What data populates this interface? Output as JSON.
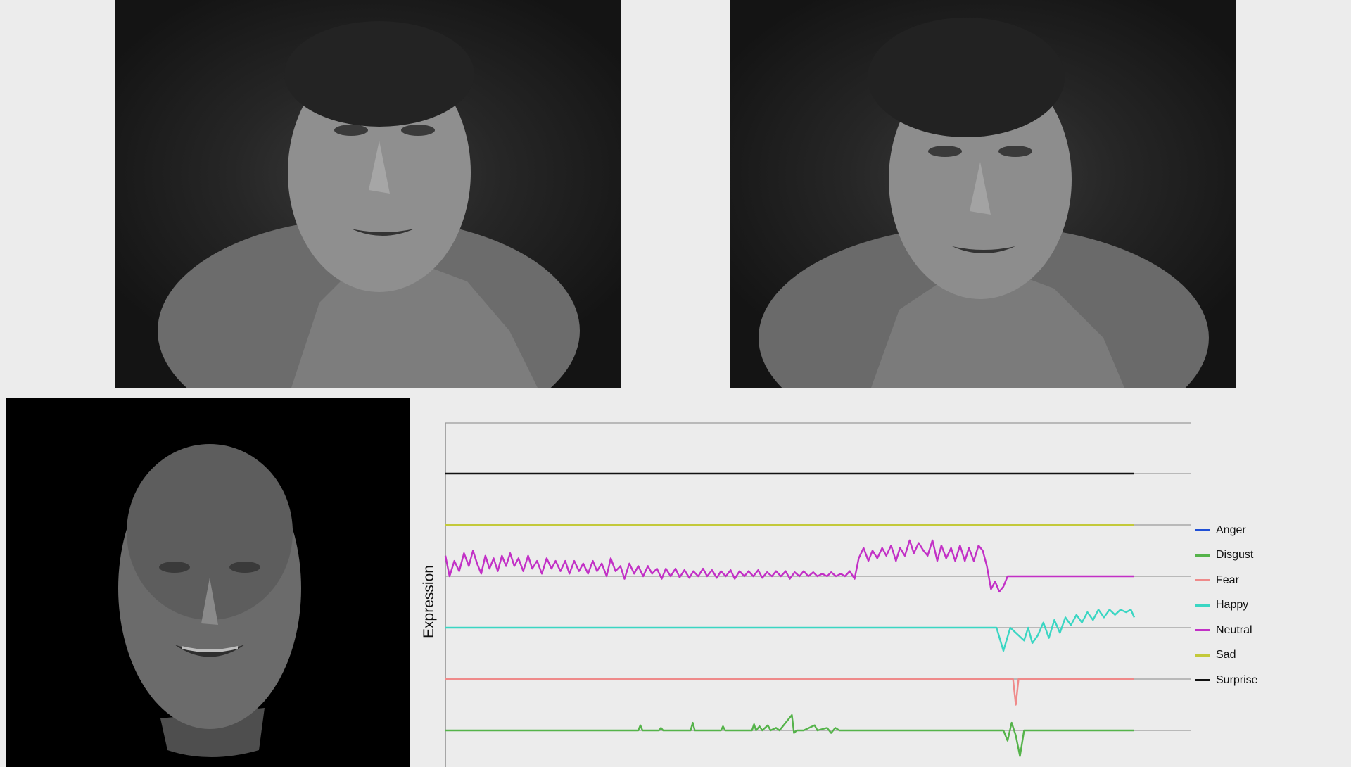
{
  "chart_data": {
    "type": "line",
    "xlabel": "",
    "ylabel": "Expression",
    "grid": "horizontal baselines per series",
    "legend_placement": "right",
    "legend": [
      {
        "name": "Anger",
        "color": "#1f4fd6"
      },
      {
        "name": "Disgust",
        "color": "#55b34a"
      },
      {
        "name": "Fear",
        "color": "#ef8a8a"
      },
      {
        "name": "Happy",
        "color": "#3ad6c3"
      },
      {
        "name": "Neutral",
        "color": "#c230c6"
      },
      {
        "name": "Sad",
        "color": "#c3c93a"
      },
      {
        "name": "Surprise",
        "color": "#111111"
      }
    ],
    "series": [
      {
        "name": "Surprise",
        "color": "#111111",
        "lane": 0,
        "points": [
          [
            0,
            0
          ],
          [
            100,
            0
          ]
        ]
      },
      {
        "name": "Sad",
        "color": "#c3c93a",
        "lane": 1,
        "points": [
          [
            0,
            0
          ],
          [
            100,
            0
          ]
        ]
      },
      {
        "name": "Neutral",
        "color": "#c230c6",
        "lane": 2,
        "points": [
          [
            0,
            0.4
          ],
          [
            0.6,
            0.0
          ],
          [
            1.3,
            0.3
          ],
          [
            2.0,
            0.1
          ],
          [
            2.7,
            0.45
          ],
          [
            3.4,
            0.2
          ],
          [
            4.0,
            0.5
          ],
          [
            4.6,
            0.25
          ],
          [
            5.2,
            0.05
          ],
          [
            5.8,
            0.4
          ],
          [
            6.4,
            0.15
          ],
          [
            7.0,
            0.35
          ],
          [
            7.6,
            0.1
          ],
          [
            8.2,
            0.4
          ],
          [
            8.8,
            0.2
          ],
          [
            9.4,
            0.45
          ],
          [
            10,
            0.2
          ],
          [
            10.6,
            0.35
          ],
          [
            11.3,
            0.1
          ],
          [
            12,
            0.4
          ],
          [
            12.6,
            0.15
          ],
          [
            13.3,
            0.3
          ],
          [
            14,
            0.05
          ],
          [
            14.7,
            0.35
          ],
          [
            15.4,
            0.15
          ],
          [
            16,
            0.3
          ],
          [
            16.7,
            0.1
          ],
          [
            17.4,
            0.3
          ],
          [
            18,
            0.05
          ],
          [
            18.7,
            0.3
          ],
          [
            19.4,
            0.1
          ],
          [
            20,
            0.25
          ],
          [
            20.7,
            0.05
          ],
          [
            21.4,
            0.3
          ],
          [
            22,
            0.1
          ],
          [
            22.7,
            0.25
          ],
          [
            23.4,
            0.0
          ],
          [
            24.0,
            0.35
          ],
          [
            24.7,
            0.1
          ],
          [
            25.4,
            0.2
          ],
          [
            26,
            -0.05
          ],
          [
            26.7,
            0.25
          ],
          [
            27.4,
            0.05
          ],
          [
            28,
            0.2
          ],
          [
            28.7,
            0.0
          ],
          [
            29.4,
            0.2
          ],
          [
            30,
            0.05
          ],
          [
            30.7,
            0.15
          ],
          [
            31.4,
            -0.05
          ],
          [
            32,
            0.15
          ],
          [
            32.7,
            0.0
          ],
          [
            33.4,
            0.15
          ],
          [
            34,
            -0.02
          ],
          [
            34.7,
            0.12
          ],
          [
            35.4,
            -0.03
          ],
          [
            36,
            0.1
          ],
          [
            36.7,
            0.0
          ],
          [
            37.4,
            0.15
          ],
          [
            38,
            0.0
          ],
          [
            38.7,
            0.12
          ],
          [
            39.4,
            -0.03
          ],
          [
            40,
            0.1
          ],
          [
            40.7,
            0.0
          ],
          [
            41.4,
            0.12
          ],
          [
            42,
            -0.05
          ],
          [
            42.7,
            0.1
          ],
          [
            43.4,
            0.0
          ],
          [
            44,
            0.1
          ],
          [
            44.7,
            0.0
          ],
          [
            45.4,
            0.12
          ],
          [
            46,
            -0.03
          ],
          [
            46.7,
            0.08
          ],
          [
            47.4,
            0.0
          ],
          [
            48,
            0.1
          ],
          [
            48.7,
            0.0
          ],
          [
            49.4,
            0.1
          ],
          [
            50,
            -0.05
          ],
          [
            50.7,
            0.08
          ],
          [
            51.4,
            0.0
          ],
          [
            52,
            0.1
          ],
          [
            52.7,
            0.0
          ],
          [
            53.4,
            0.08
          ],
          [
            54,
            0.0
          ],
          [
            54.7,
            0.05
          ],
          [
            55.4,
            0.0
          ],
          [
            56,
            0.08
          ],
          [
            56.7,
            0.0
          ],
          [
            57.4,
            0.05
          ],
          [
            58,
            0.0
          ],
          [
            58.7,
            0.1
          ],
          [
            59.4,
            -0.05
          ],
          [
            60,
            0.35
          ],
          [
            60.7,
            0.55
          ],
          [
            61.4,
            0.3
          ],
          [
            62,
            0.5
          ],
          [
            62.7,
            0.35
          ],
          [
            63.4,
            0.55
          ],
          [
            64,
            0.4
          ],
          [
            64.7,
            0.6
          ],
          [
            65.4,
            0.3
          ],
          [
            66,
            0.55
          ],
          [
            66.7,
            0.4
          ],
          [
            67.4,
            0.7
          ],
          [
            68,
            0.45
          ],
          [
            68.7,
            0.65
          ],
          [
            69.4,
            0.5
          ],
          [
            70,
            0.4
          ],
          [
            70.7,
            0.7
          ],
          [
            71.4,
            0.3
          ],
          [
            72,
            0.6
          ],
          [
            72.7,
            0.35
          ],
          [
            73.4,
            0.55
          ],
          [
            74,
            0.3
          ],
          [
            74.7,
            0.6
          ],
          [
            75.4,
            0.3
          ],
          [
            76,
            0.55
          ],
          [
            76.7,
            0.3
          ],
          [
            77.4,
            0.6
          ],
          [
            78,
            0.5
          ],
          [
            78.6,
            0.2
          ],
          [
            79.2,
            -0.25
          ],
          [
            79.8,
            -0.1
          ],
          [
            80.4,
            -0.3
          ],
          [
            81,
            -0.2
          ],
          [
            81.6,
            0.0
          ],
          [
            100,
            0.0
          ]
        ]
      },
      {
        "name": "Happy",
        "color": "#3ad6c3",
        "lane": 3,
        "points": [
          [
            0,
            0
          ],
          [
            80,
            0
          ],
          [
            81,
            -0.45
          ],
          [
            82,
            0
          ],
          [
            84,
            -0.25
          ],
          [
            84.6,
            0
          ],
          [
            85.2,
            -0.3
          ],
          [
            86,
            -0.15
          ],
          [
            86.8,
            0.1
          ],
          [
            87.6,
            -0.2
          ],
          [
            88.4,
            0.15
          ],
          [
            89.2,
            -0.1
          ],
          [
            90,
            0.2
          ],
          [
            90.8,
            0.05
          ],
          [
            91.6,
            0.25
          ],
          [
            92.4,
            0.1
          ],
          [
            93.2,
            0.3
          ],
          [
            94,
            0.15
          ],
          [
            94.8,
            0.35
          ],
          [
            95.6,
            0.2
          ],
          [
            96.4,
            0.35
          ],
          [
            97.2,
            0.25
          ],
          [
            98,
            0.35
          ],
          [
            98.8,
            0.3
          ],
          [
            99.5,
            0.35
          ],
          [
            100,
            0.2
          ]
        ]
      },
      {
        "name": "Fear",
        "color": "#ef8a8a",
        "lane": 4,
        "points": [
          [
            0,
            0
          ],
          [
            82.4,
            0
          ],
          [
            82.8,
            -0.5
          ],
          [
            83.2,
            0
          ],
          [
            100,
            0
          ]
        ]
      },
      {
        "name": "Disgust",
        "color": "#55b34a",
        "lane": 5,
        "points": [
          [
            0,
            0
          ],
          [
            28,
            0
          ],
          [
            28.3,
            0.1
          ],
          [
            28.6,
            0
          ],
          [
            31,
            0
          ],
          [
            31.3,
            0.05
          ],
          [
            31.6,
            0
          ],
          [
            35.6,
            0
          ],
          [
            35.9,
            0.15
          ],
          [
            36.2,
            0
          ],
          [
            40,
            0
          ],
          [
            40.3,
            0.08
          ],
          [
            40.6,
            0
          ],
          [
            44.5,
            0
          ],
          [
            44.8,
            0.12
          ],
          [
            45.1,
            0
          ],
          [
            45.6,
            0.08
          ],
          [
            46,
            0
          ],
          [
            46.8,
            0.1
          ],
          [
            47.2,
            0
          ],
          [
            48,
            0.05
          ],
          [
            48.5,
            0
          ],
          [
            50.3,
            0.3
          ],
          [
            50.6,
            -0.05
          ],
          [
            51,
            0
          ],
          [
            52,
            0
          ],
          [
            53.6,
            0.1
          ],
          [
            54,
            0
          ],
          [
            55.4,
            0.05
          ],
          [
            56,
            -0.05
          ],
          [
            56.6,
            0.05
          ],
          [
            57.2,
            0
          ],
          [
            81,
            0
          ],
          [
            81.6,
            -0.2
          ],
          [
            82.2,
            0.15
          ],
          [
            82.8,
            -0.1
          ],
          [
            83.4,
            -0.5
          ],
          [
            84,
            0
          ],
          [
            100,
            0
          ]
        ]
      },
      {
        "name": "Anger",
        "color": "#1f4fd6",
        "lane": 6,
        "points": []
      }
    ]
  }
}
